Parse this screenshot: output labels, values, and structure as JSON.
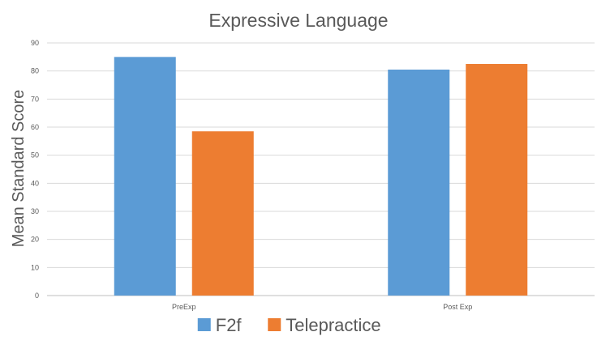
{
  "chart_data": {
    "type": "bar",
    "title": "Expressive Language",
    "xlabel": "",
    "ylabel": "Mean Standard Score",
    "categories": [
      "PreExp",
      "Post Exp"
    ],
    "series": [
      {
        "name": "F2f",
        "color": "#5b9bd5",
        "values": [
          85,
          80.5
        ]
      },
      {
        "name": "Telepractice",
        "color": "#ed7d31",
        "values": [
          58.5,
          82.5
        ]
      }
    ],
    "ylim": [
      0,
      90
    ],
    "yticks": [
      0,
      10,
      20,
      30,
      40,
      50,
      60,
      70,
      80,
      90
    ],
    "grid": true,
    "legend_position": "bottom"
  }
}
